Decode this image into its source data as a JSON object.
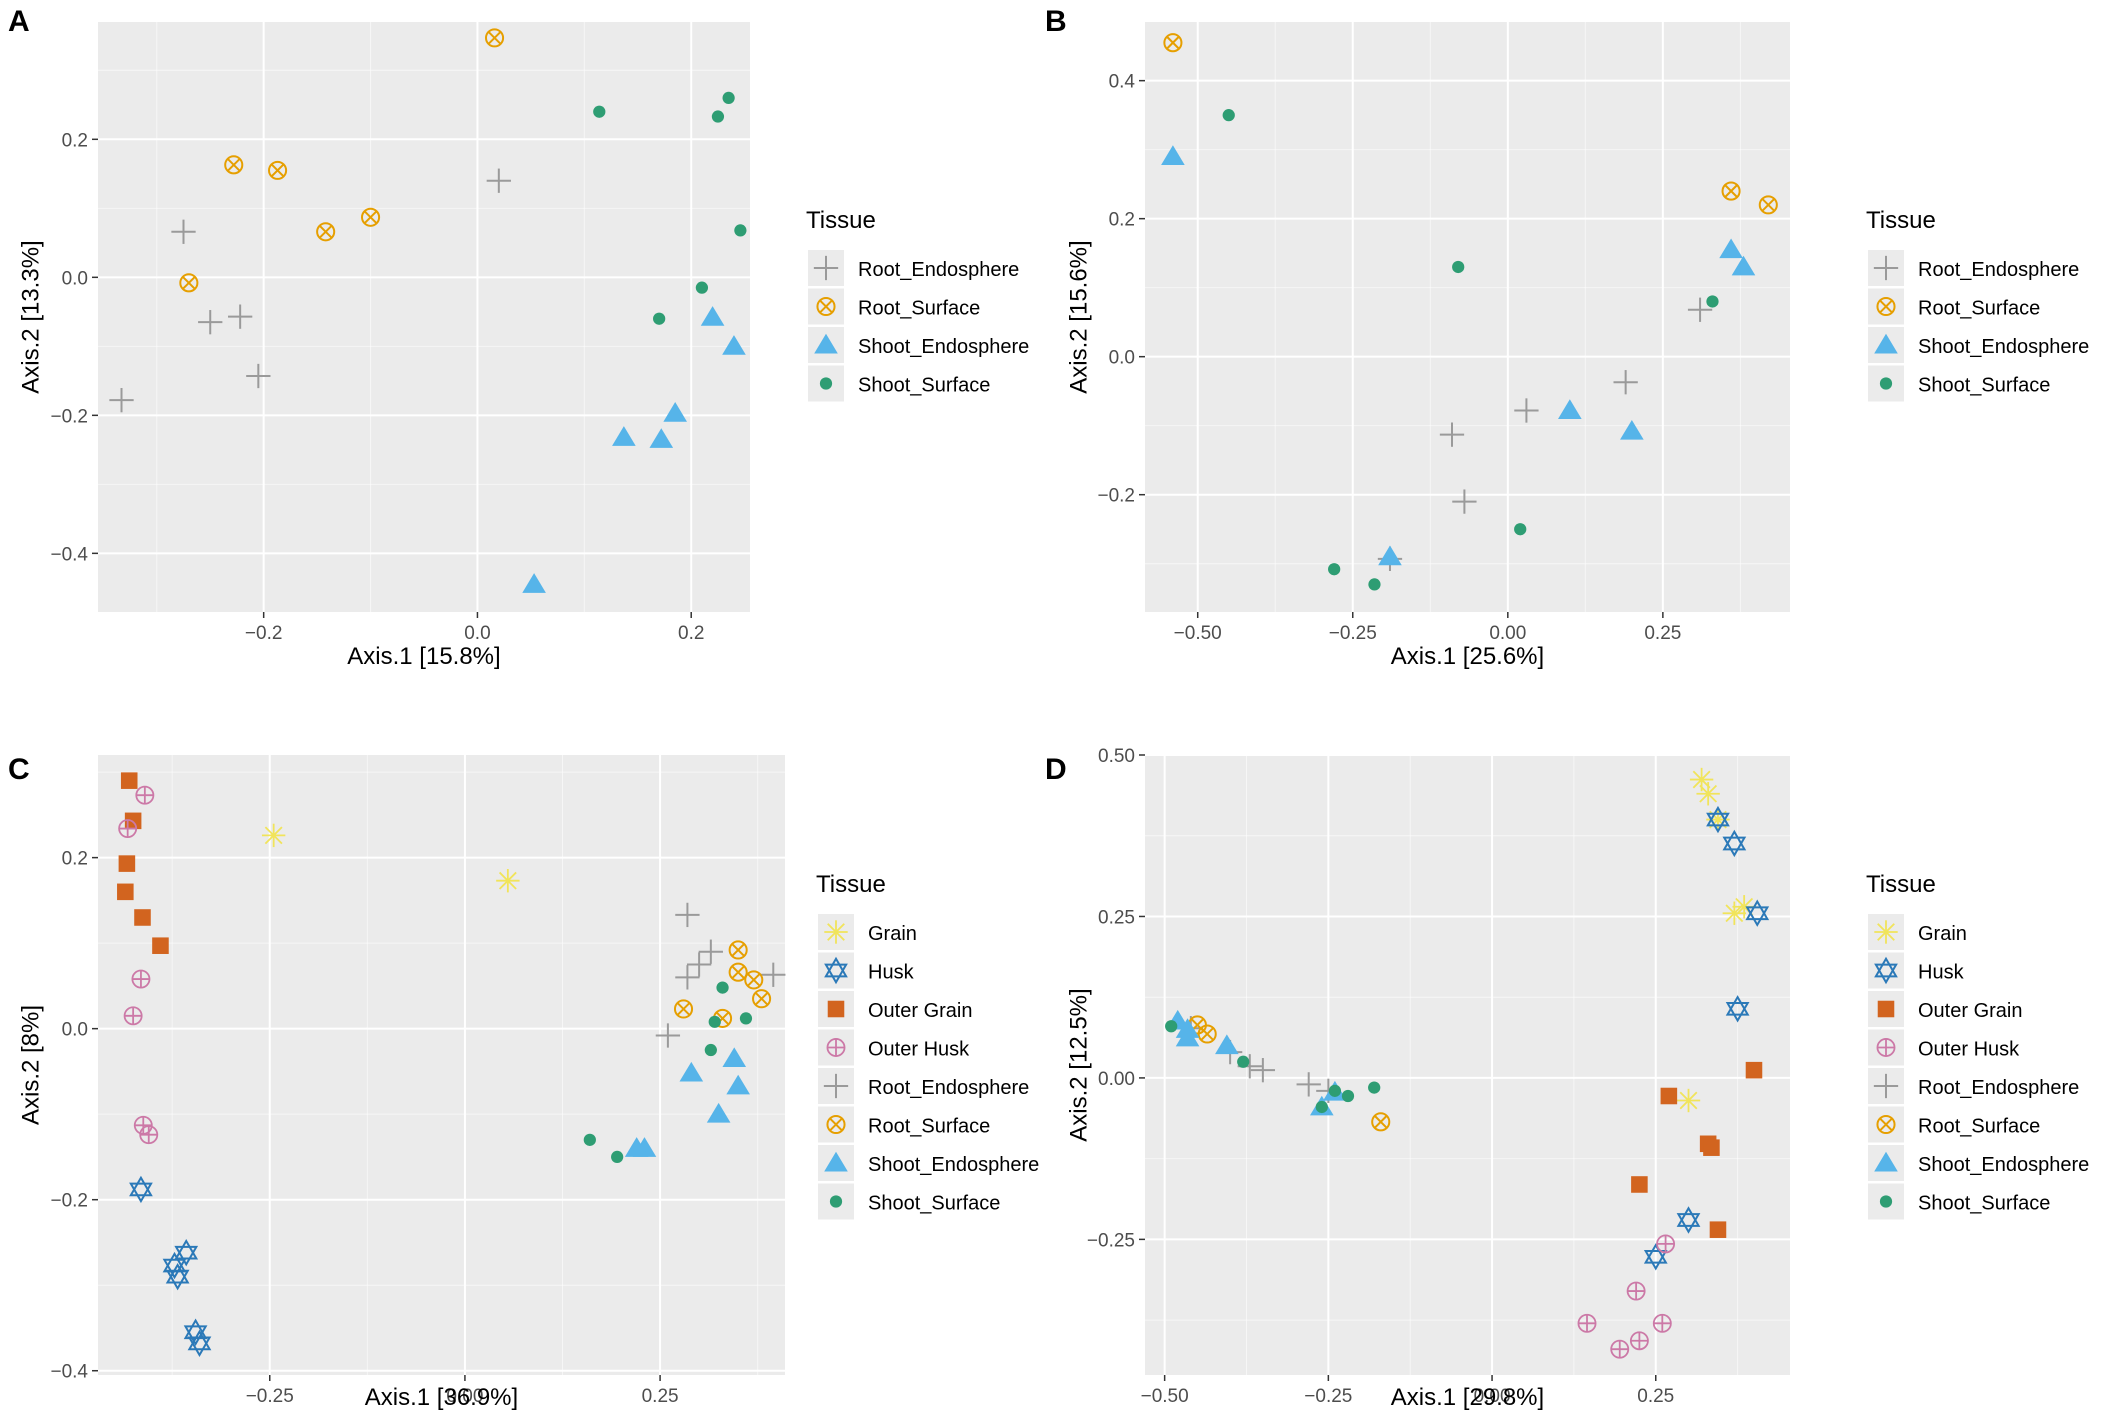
{
  "colors": {
    "panel_bg": "#ebebeb",
    "grid_major": "#ffffff",
    "Grain": "#f1e45a",
    "Husk": "#2b79b8",
    "Outer Grain": "#d2641f",
    "Outer Husk": "#cc79a7",
    "Root_Endosphere": "#9a9a9a",
    "Root_Surface": "#e69f00",
    "Shoot_Endosphere": "#56b4e9",
    "Shoot_Surface": "#2e9d73"
  },
  "shapes": {
    "Grain": "asterisk-icon",
    "Husk": "star-of-david-icon",
    "Outer Grain": "square-icon",
    "Outer Husk": "circle-plus-icon",
    "Root_Endosphere": "plus-icon",
    "Root_Surface": "circle-x-icon",
    "Shoot_Endosphere": "triangle-icon",
    "Shoot_Surface": "dot-icon"
  },
  "chart_data": [
    {
      "type": "scatter",
      "panel": "A",
      "xlabel": "Axis.1   [15.8%]",
      "ylabel": "Axis.2   [13.3%]",
      "xlim": [
        -0.355,
        0.255
      ],
      "ylim": [
        -0.485,
        0.37
      ],
      "xticks": [
        -0.2,
        0.0,
        0.2
      ],
      "xtick_labels": [
        "−0.2",
        "0.0",
        "0.2"
      ],
      "yticks": [
        -0.4,
        -0.2,
        0.0,
        0.2
      ],
      "ytick_labels": [
        "−0.4",
        "−0.2",
        "0.0",
        "0.2"
      ],
      "legend_title": "Tissue",
      "legend": [
        "Root_Endosphere",
        "Root_Surface",
        "Shoot_Endosphere",
        "Shoot_Surface"
      ],
      "series": [
        {
          "name": "Root_Endosphere",
          "points": [
            [
              -0.333,
              -0.178
            ],
            [
              -0.275,
              0.066
            ],
            [
              -0.25,
              -0.065
            ],
            [
              -0.222,
              -0.057
            ],
            [
              -0.205,
              -0.143
            ],
            [
              0.02,
              0.14
            ]
          ]
        },
        {
          "name": "Root_Surface",
          "points": [
            [
              -0.27,
              -0.008
            ],
            [
              -0.228,
              0.163
            ],
            [
              -0.187,
              0.155
            ],
            [
              -0.142,
              0.066
            ],
            [
              -0.1,
              0.087
            ],
            [
              0.016,
              0.347
            ]
          ]
        },
        {
          "name": "Shoot_Endosphere",
          "points": [
            [
              0.053,
              -0.445
            ],
            [
              0.137,
              -0.232
            ],
            [
              0.172,
              -0.235
            ],
            [
              0.185,
              -0.197
            ],
            [
              0.22,
              -0.058
            ],
            [
              0.24,
              -0.1
            ]
          ]
        },
        {
          "name": "Shoot_Surface",
          "points": [
            [
              0.114,
              0.24
            ],
            [
              0.17,
              -0.06
            ],
            [
              0.21,
              -0.015
            ],
            [
              0.225,
              0.233
            ],
            [
              0.235,
              0.26
            ],
            [
              0.246,
              0.068
            ]
          ]
        }
      ]
    },
    {
      "type": "scatter",
      "panel": "B",
      "xlabel": "Axis.1   [25.6%]",
      "ylabel": "Axis.2   [15.6%]",
      "xlim": [
        -0.585,
        0.455
      ],
      "ylim": [
        -0.37,
        0.485
      ],
      "xticks": [
        -0.5,
        -0.25,
        0.0,
        0.25
      ],
      "xtick_labels": [
        "−0.50",
        "−0.25",
        "0.00",
        "0.25"
      ],
      "yticks": [
        -0.2,
        0.0,
        0.2,
        0.4
      ],
      "ytick_labels": [
        "−0.2",
        "0.0",
        "0.2",
        "0.4"
      ],
      "legend_title": "Tissue",
      "legend": [
        "Root_Endosphere",
        "Root_Surface",
        "Shoot_Endosphere",
        "Shoot_Surface"
      ],
      "series": [
        {
          "name": "Root_Endosphere",
          "points": [
            [
              -0.19,
              -0.293
            ],
            [
              -0.09,
              -0.113
            ],
            [
              -0.07,
              -0.21
            ],
            [
              0.03,
              -0.078
            ],
            [
              0.19,
              -0.037
            ],
            [
              0.31,
              0.068
            ]
          ]
        },
        {
          "name": "Root_Surface",
          "points": [
            [
              -0.54,
              0.455
            ],
            [
              0.36,
              0.24
            ],
            [
              0.42,
              0.22
            ]
          ]
        },
        {
          "name": "Shoot_Endosphere",
          "points": [
            [
              -0.54,
              0.29
            ],
            [
              -0.19,
              -0.29
            ],
            [
              0.1,
              -0.078
            ],
            [
              0.2,
              -0.108
            ],
            [
              0.36,
              0.155
            ],
            [
              0.38,
              0.13
            ]
          ]
        },
        {
          "name": "Shoot_Surface",
          "points": [
            [
              -0.45,
              0.35
            ],
            [
              -0.08,
              0.13
            ],
            [
              -0.28,
              -0.308
            ],
            [
              -0.215,
              -0.33
            ],
            [
              0.02,
              -0.25
            ],
            [
              0.33,
              0.08
            ]
          ]
        }
      ]
    },
    {
      "type": "scatter",
      "panel": "C",
      "xlabel": "Axis.1   [36.9%]",
      "ylabel": "Axis.2   [8%]",
      "xlim": [
        -0.47,
        0.41
      ],
      "ylim": [
        -0.405,
        0.32
      ],
      "xticks": [
        -0.25,
        0.0,
        0.25
      ],
      "xtick_labels": [
        "−0.25",
        "0.00",
        "0.25"
      ],
      "yticks": [
        -0.4,
        -0.2,
        0.0,
        0.2
      ],
      "ytick_labels": [
        "−0.4",
        "−0.2",
        "0.0",
        "0.2"
      ],
      "legend_title": "Tissue",
      "legend": [
        "Grain",
        "Husk",
        "Outer Grain",
        "Outer Husk",
        "Root_Endosphere",
        "Root_Surface",
        "Shoot_Endosphere",
        "Shoot_Surface"
      ],
      "series": [
        {
          "name": "Grain",
          "points": [
            [
              -0.245,
              0.226
            ],
            [
              0.055,
              0.173
            ]
          ]
        },
        {
          "name": "Husk",
          "points": [
            [
              -0.415,
              -0.188
            ],
            [
              -0.372,
              -0.277
            ],
            [
              -0.368,
              -0.29
            ],
            [
              -0.357,
              -0.262
            ],
            [
              -0.345,
              -0.355
            ],
            [
              -0.34,
              -0.368
            ]
          ]
        },
        {
          "name": "Outer Grain",
          "points": [
            [
              -0.43,
              0.29
            ],
            [
              -0.425,
              0.243
            ],
            [
              -0.433,
              0.193
            ],
            [
              -0.435,
              0.16
            ],
            [
              -0.413,
              0.13
            ],
            [
              -0.39,
              0.097
            ]
          ]
        },
        {
          "name": "Outer Husk",
          "points": [
            [
              -0.41,
              0.273
            ],
            [
              -0.432,
              0.234
            ],
            [
              -0.415,
              0.058
            ],
            [
              -0.425,
              0.015
            ],
            [
              -0.412,
              -0.113
            ],
            [
              -0.405,
              -0.124
            ]
          ]
        },
        {
          "name": "Root_Endosphere",
          "points": [
            [
              0.26,
              -0.008
            ],
            [
              0.285,
              0.06
            ],
            [
              0.3,
              0.075
            ],
            [
              0.315,
              0.09
            ],
            [
              0.285,
              0.133
            ],
            [
              0.395,
              0.063
            ]
          ]
        },
        {
          "name": "Root_Surface",
          "points": [
            [
              0.28,
              0.023
            ],
            [
              0.33,
              0.012
            ],
            [
              0.35,
              0.066
            ],
            [
              0.37,
              0.057
            ],
            [
              0.35,
              0.092
            ],
            [
              0.38,
              0.035
            ]
          ]
        },
        {
          "name": "Shoot_Endosphere",
          "points": [
            [
              0.23,
              -0.14
            ],
            [
              0.29,
              -0.052
            ],
            [
              0.325,
              -0.1
            ],
            [
              0.345,
              -0.035
            ],
            [
              0.35,
              -0.067
            ],
            [
              0.22,
              -0.14
            ]
          ]
        },
        {
          "name": "Shoot_Surface",
          "points": [
            [
              0.16,
              -0.13
            ],
            [
              0.195,
              -0.15
            ],
            [
              0.315,
              -0.025
            ],
            [
              0.32,
              0.008
            ],
            [
              0.33,
              0.048
            ],
            [
              0.36,
              0.012
            ]
          ]
        }
      ]
    },
    {
      "type": "scatter",
      "panel": "D",
      "xlabel": "Axis.1   [29.8%]",
      "ylabel": "Axis.2   [12.5%]",
      "xlim": [
        -0.53,
        0.455
      ],
      "ylim": [
        -0.46,
        0.5
      ],
      "xticks": [
        -0.5,
        -0.25,
        0.0,
        0.25
      ],
      "xtick_labels": [
        "−0.50",
        "−0.25",
        "0.00",
        "0.25"
      ],
      "yticks": [
        -0.25,
        0.0,
        0.25,
        0.5
      ],
      "ytick_labels": [
        "−0.25",
        "0.00",
        "0.25",
        "0.50"
      ],
      "legend_title": "Tissue",
      "legend": [
        "Grain",
        "Husk",
        "Outer Grain",
        "Outer Husk",
        "Root_Endosphere",
        "Root_Surface",
        "Shoot_Endosphere",
        "Shoot_Surface"
      ],
      "series": [
        {
          "name": "Grain",
          "points": [
            [
              0.32,
              0.462
            ],
            [
              0.33,
              0.44
            ],
            [
              0.345,
              0.4
            ],
            [
              0.37,
              0.255
            ],
            [
              0.385,
              0.265
            ],
            [
              0.3,
              -0.035
            ]
          ]
        },
        {
          "name": "Husk",
          "points": [
            [
              0.345,
              0.4
            ],
            [
              0.37,
              0.363
            ],
            [
              0.405,
              0.255
            ],
            [
              0.375,
              0.107
            ],
            [
              0.3,
              -0.22
            ],
            [
              0.25,
              -0.277
            ]
          ]
        },
        {
          "name": "Outer Grain",
          "points": [
            [
              0.27,
              -0.028
            ],
            [
              0.33,
              -0.102
            ],
            [
              0.335,
              -0.108
            ],
            [
              0.225,
              -0.165
            ],
            [
              0.345,
              -0.235
            ],
            [
              0.4,
              0.012
            ]
          ]
        },
        {
          "name": "Outer Husk",
          "points": [
            [
              0.265,
              -0.257
            ],
            [
              0.22,
              -0.33
            ],
            [
              0.145,
              -0.38
            ],
            [
              0.195,
              -0.42
            ],
            [
              0.225,
              -0.407
            ],
            [
              0.26,
              -0.38
            ]
          ]
        },
        {
          "name": "Root_Endosphere",
          "points": [
            [
              -0.46,
              0.077
            ],
            [
              -0.4,
              0.04
            ],
            [
              -0.37,
              0.018
            ],
            [
              -0.35,
              0.012
            ],
            [
              -0.28,
              -0.01
            ],
            [
              -0.25,
              -0.02
            ]
          ]
        },
        {
          "name": "Root_Surface",
          "points": [
            [
              -0.45,
              0.082
            ],
            [
              -0.435,
              0.068
            ],
            [
              -0.17,
              -0.068
            ]
          ]
        },
        {
          "name": "Shoot_Endosphere",
          "points": [
            [
              -0.48,
              0.088
            ],
            [
              -0.465,
              0.075
            ],
            [
              -0.465,
              0.062
            ],
            [
              -0.405,
              0.05
            ],
            [
              -0.26,
              -0.045
            ],
            [
              -0.24,
              -0.022
            ]
          ]
        },
        {
          "name": "Shoot_Surface",
          "points": [
            [
              -0.49,
              0.08
            ],
            [
              -0.38,
              0.025
            ],
            [
              -0.26,
              -0.045
            ],
            [
              -0.24,
              -0.02
            ],
            [
              -0.22,
              -0.028
            ],
            [
              -0.18,
              -0.015
            ]
          ]
        }
      ]
    }
  ]
}
